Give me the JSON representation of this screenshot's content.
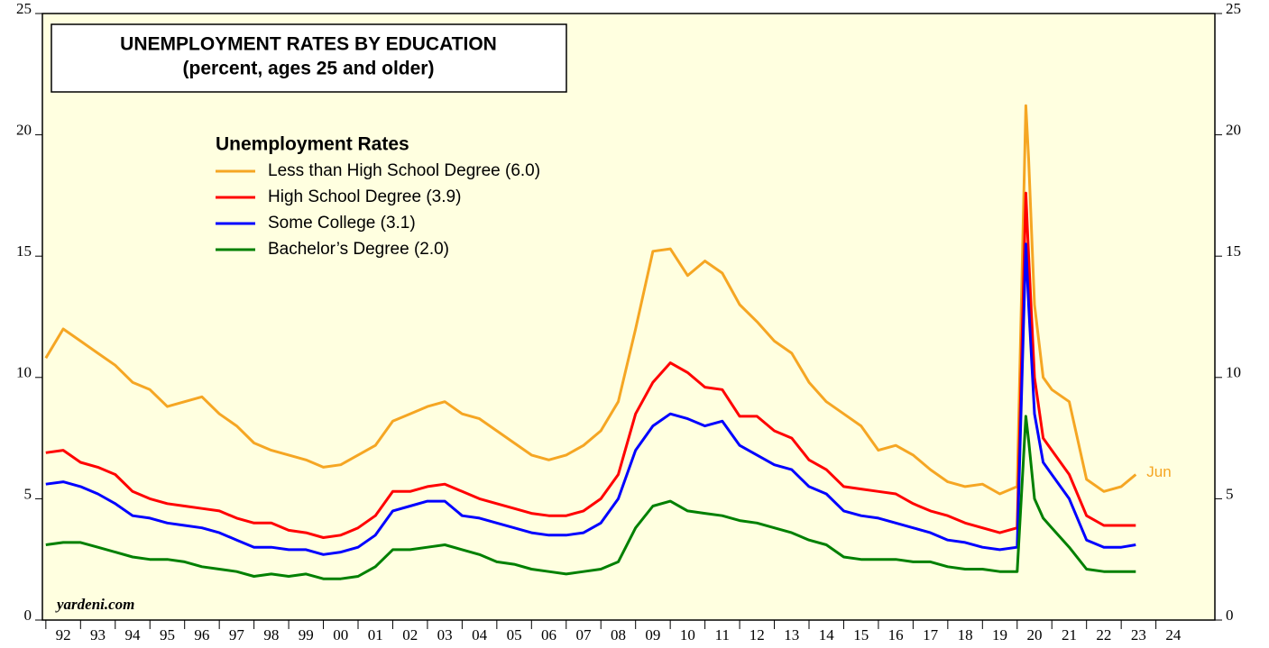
{
  "chart_data": {
    "type": "line",
    "title": "UNEMPLOYMENT RATES BY EDUCATION",
    "subtitle": "(percent, ages 25 and older)",
    "legend_title": "Unemployment Rates",
    "source": "yardeni.com",
    "annotation": "Jun",
    "x": [
      1992.0,
      1992.5,
      1993.0,
      1993.5,
      1994.0,
      1994.5,
      1995.0,
      1995.5,
      1996.0,
      1996.5,
      1997.0,
      1997.5,
      1998.0,
      1998.5,
      1999.0,
      1999.5,
      2000.0,
      2000.5,
      2001.0,
      2001.5,
      2002.0,
      2002.5,
      2003.0,
      2003.5,
      2004.0,
      2004.5,
      2005.0,
      2005.5,
      2006.0,
      2006.5,
      2007.0,
      2007.5,
      2008.0,
      2008.5,
      2009.0,
      2009.5,
      2010.0,
      2010.5,
      2011.0,
      2011.5,
      2012.0,
      2012.5,
      2013.0,
      2013.5,
      2014.0,
      2014.5,
      2015.0,
      2015.5,
      2016.0,
      2016.5,
      2017.0,
      2017.5,
      2018.0,
      2018.5,
      2019.0,
      2019.5,
      2020.0,
      2020.25,
      2020.33,
      2020.5,
      2020.75,
      2021.0,
      2021.5,
      2022.0,
      2022.5,
      2023.0,
      2023.42
    ],
    "series": [
      {
        "name": "Less than High School Degree (6.0)",
        "color": "#f5a623",
        "values": [
          10.8,
          12.0,
          11.5,
          11.0,
          10.5,
          9.8,
          9.5,
          8.8,
          9.0,
          9.2,
          8.5,
          8.0,
          7.3,
          7.0,
          6.8,
          6.6,
          6.3,
          6.4,
          6.8,
          7.2,
          8.2,
          8.5,
          8.8,
          9.0,
          8.5,
          8.3,
          7.8,
          7.3,
          6.8,
          6.6,
          6.8,
          7.2,
          7.8,
          9.0,
          12.0,
          15.2,
          15.3,
          14.2,
          14.8,
          14.3,
          13.0,
          12.3,
          11.5,
          11.0,
          9.8,
          9.0,
          8.5,
          8.0,
          7.0,
          7.2,
          6.8,
          6.2,
          5.7,
          5.5,
          5.6,
          5.2,
          5.5,
          21.2,
          19.0,
          13.0,
          10.0,
          9.5,
          9.0,
          5.8,
          5.3,
          5.5,
          6.0
        ]
      },
      {
        "name": "High School Degree (3.9)",
        "color": "#ff0000",
        "values": [
          6.9,
          7.0,
          6.5,
          6.3,
          6.0,
          5.3,
          5.0,
          4.8,
          4.7,
          4.6,
          4.5,
          4.2,
          4.0,
          4.0,
          3.7,
          3.6,
          3.4,
          3.5,
          3.8,
          4.3,
          5.3,
          5.3,
          5.5,
          5.6,
          5.3,
          5.0,
          4.8,
          4.6,
          4.4,
          4.3,
          4.3,
          4.5,
          5.0,
          6.0,
          8.5,
          9.8,
          10.6,
          10.2,
          9.6,
          9.5,
          8.4,
          8.4,
          7.8,
          7.5,
          6.6,
          6.2,
          5.5,
          5.4,
          5.3,
          5.2,
          4.8,
          4.5,
          4.3,
          4.0,
          3.8,
          3.6,
          3.8,
          17.6,
          15.0,
          10.0,
          7.5,
          7.0,
          6.0,
          4.3,
          3.9,
          3.9,
          3.9
        ]
      },
      {
        "name": "Some College (3.1)",
        "color": "#0000ff",
        "values": [
          5.6,
          5.7,
          5.5,
          5.2,
          4.8,
          4.3,
          4.2,
          4.0,
          3.9,
          3.8,
          3.6,
          3.3,
          3.0,
          3.0,
          2.9,
          2.9,
          2.7,
          2.8,
          3.0,
          3.5,
          4.5,
          4.7,
          4.9,
          4.9,
          4.3,
          4.2,
          4.0,
          3.8,
          3.6,
          3.5,
          3.5,
          3.6,
          4.0,
          5.0,
          7.0,
          8.0,
          8.5,
          8.3,
          8.0,
          8.2,
          7.2,
          6.8,
          6.4,
          6.2,
          5.5,
          5.2,
          4.5,
          4.3,
          4.2,
          4.0,
          3.8,
          3.6,
          3.3,
          3.2,
          3.0,
          2.9,
          3.0,
          15.5,
          13.0,
          8.5,
          6.5,
          6.0,
          5.0,
          3.3,
          3.0,
          3.0,
          3.1
        ]
      },
      {
        "name": "Bachelor’s Degree (2.0)",
        "color": "#008000",
        "values": [
          3.1,
          3.2,
          3.2,
          3.0,
          2.8,
          2.6,
          2.5,
          2.5,
          2.4,
          2.2,
          2.1,
          2.0,
          1.8,
          1.9,
          1.8,
          1.9,
          1.7,
          1.7,
          1.8,
          2.2,
          2.9,
          2.9,
          3.0,
          3.1,
          2.9,
          2.7,
          2.4,
          2.3,
          2.1,
          2.0,
          1.9,
          2.0,
          2.1,
          2.4,
          3.8,
          4.7,
          4.9,
          4.5,
          4.4,
          4.3,
          4.1,
          4.0,
          3.8,
          3.6,
          3.3,
          3.1,
          2.6,
          2.5,
          2.5,
          2.5,
          2.4,
          2.4,
          2.2,
          2.1,
          2.1,
          2.0,
          2.0,
          8.4,
          7.4,
          5.0,
          4.2,
          3.8,
          3.0,
          2.1,
          2.0,
          2.0,
          2.0
        ]
      }
    ],
    "xlim": [
      1991.9,
      2025.7
    ],
    "xticks": [
      {
        "value": 1992,
        "label": "92"
      },
      {
        "value": 1993,
        "label": "93"
      },
      {
        "value": 1994,
        "label": "94"
      },
      {
        "value": 1995,
        "label": "95"
      },
      {
        "value": 1996,
        "label": "96"
      },
      {
        "value": 1997,
        "label": "97"
      },
      {
        "value": 1998,
        "label": "98"
      },
      {
        "value": 1999,
        "label": "99"
      },
      {
        "value": 2000,
        "label": "00"
      },
      {
        "value": 2001,
        "label": "01"
      },
      {
        "value": 2002,
        "label": "02"
      },
      {
        "value": 2003,
        "label": "03"
      },
      {
        "value": 2004,
        "label": "04"
      },
      {
        "value": 2005,
        "label": "05"
      },
      {
        "value": 2006,
        "label": "06"
      },
      {
        "value": 2007,
        "label": "07"
      },
      {
        "value": 2008,
        "label": "08"
      },
      {
        "value": 2009,
        "label": "09"
      },
      {
        "value": 2010,
        "label": "10"
      },
      {
        "value": 2011,
        "label": "11"
      },
      {
        "value": 2012,
        "label": "12"
      },
      {
        "value": 2013,
        "label": "13"
      },
      {
        "value": 2014,
        "label": "14"
      },
      {
        "value": 2015,
        "label": "15"
      },
      {
        "value": 2016,
        "label": "16"
      },
      {
        "value": 2017,
        "label": "17"
      },
      {
        "value": 2018,
        "label": "18"
      },
      {
        "value": 2019,
        "label": "19"
      },
      {
        "value": 2020,
        "label": "20"
      },
      {
        "value": 2021,
        "label": "21"
      },
      {
        "value": 2022,
        "label": "22"
      },
      {
        "value": 2023,
        "label": "23"
      },
      {
        "value": 2024,
        "label": "24"
      }
    ],
    "ylim": [
      0,
      25
    ],
    "yticks": [
      0,
      5,
      10,
      15,
      20,
      25
    ],
    "y2lim": [
      0,
      25
    ],
    "y2ticks": [
      0,
      5,
      10,
      15,
      20,
      25
    ],
    "background": "#ffffe0"
  }
}
